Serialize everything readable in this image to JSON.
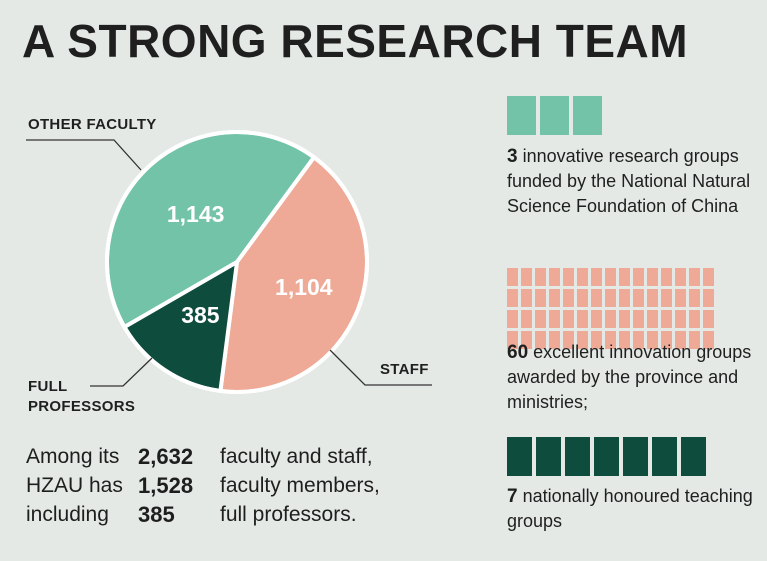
{
  "title": "A STRONG RESEARCH TEAM",
  "colors": {
    "other_faculty": "#72c3a7",
    "staff": "#eeaa96",
    "full_professors": "#0e4c3e",
    "background": "#e4e9e5"
  },
  "chart_data": {
    "type": "pie",
    "slices": [
      {
        "label": "OTHER FACULTY",
        "value": 1143
      },
      {
        "label": "STAFF",
        "value": 1104
      },
      {
        "label": "FULL PROFESSORS",
        "value": 385
      }
    ],
    "value_labels": [
      "1,143",
      "1,104",
      "385"
    ]
  },
  "summary": {
    "rows": [
      {
        "lead": "Among its",
        "num": "2,632",
        "tail": "faculty and staff,"
      },
      {
        "lead": "HZAU has",
        "num": "1,528",
        "tail": "faculty members,"
      },
      {
        "lead": "including",
        "num": "385",
        "tail": "full professors."
      }
    ]
  },
  "stats": [
    {
      "count": 3,
      "num": "3",
      "text": "innovative research groups funded by the National Natural Science Foundation of China"
    },
    {
      "count": 60,
      "num": "60",
      "text": "excellent innovation groups awarded by the province and ministries;"
    },
    {
      "count": 7,
      "num": "7",
      "text": "nationally honoured teaching groups"
    }
  ]
}
